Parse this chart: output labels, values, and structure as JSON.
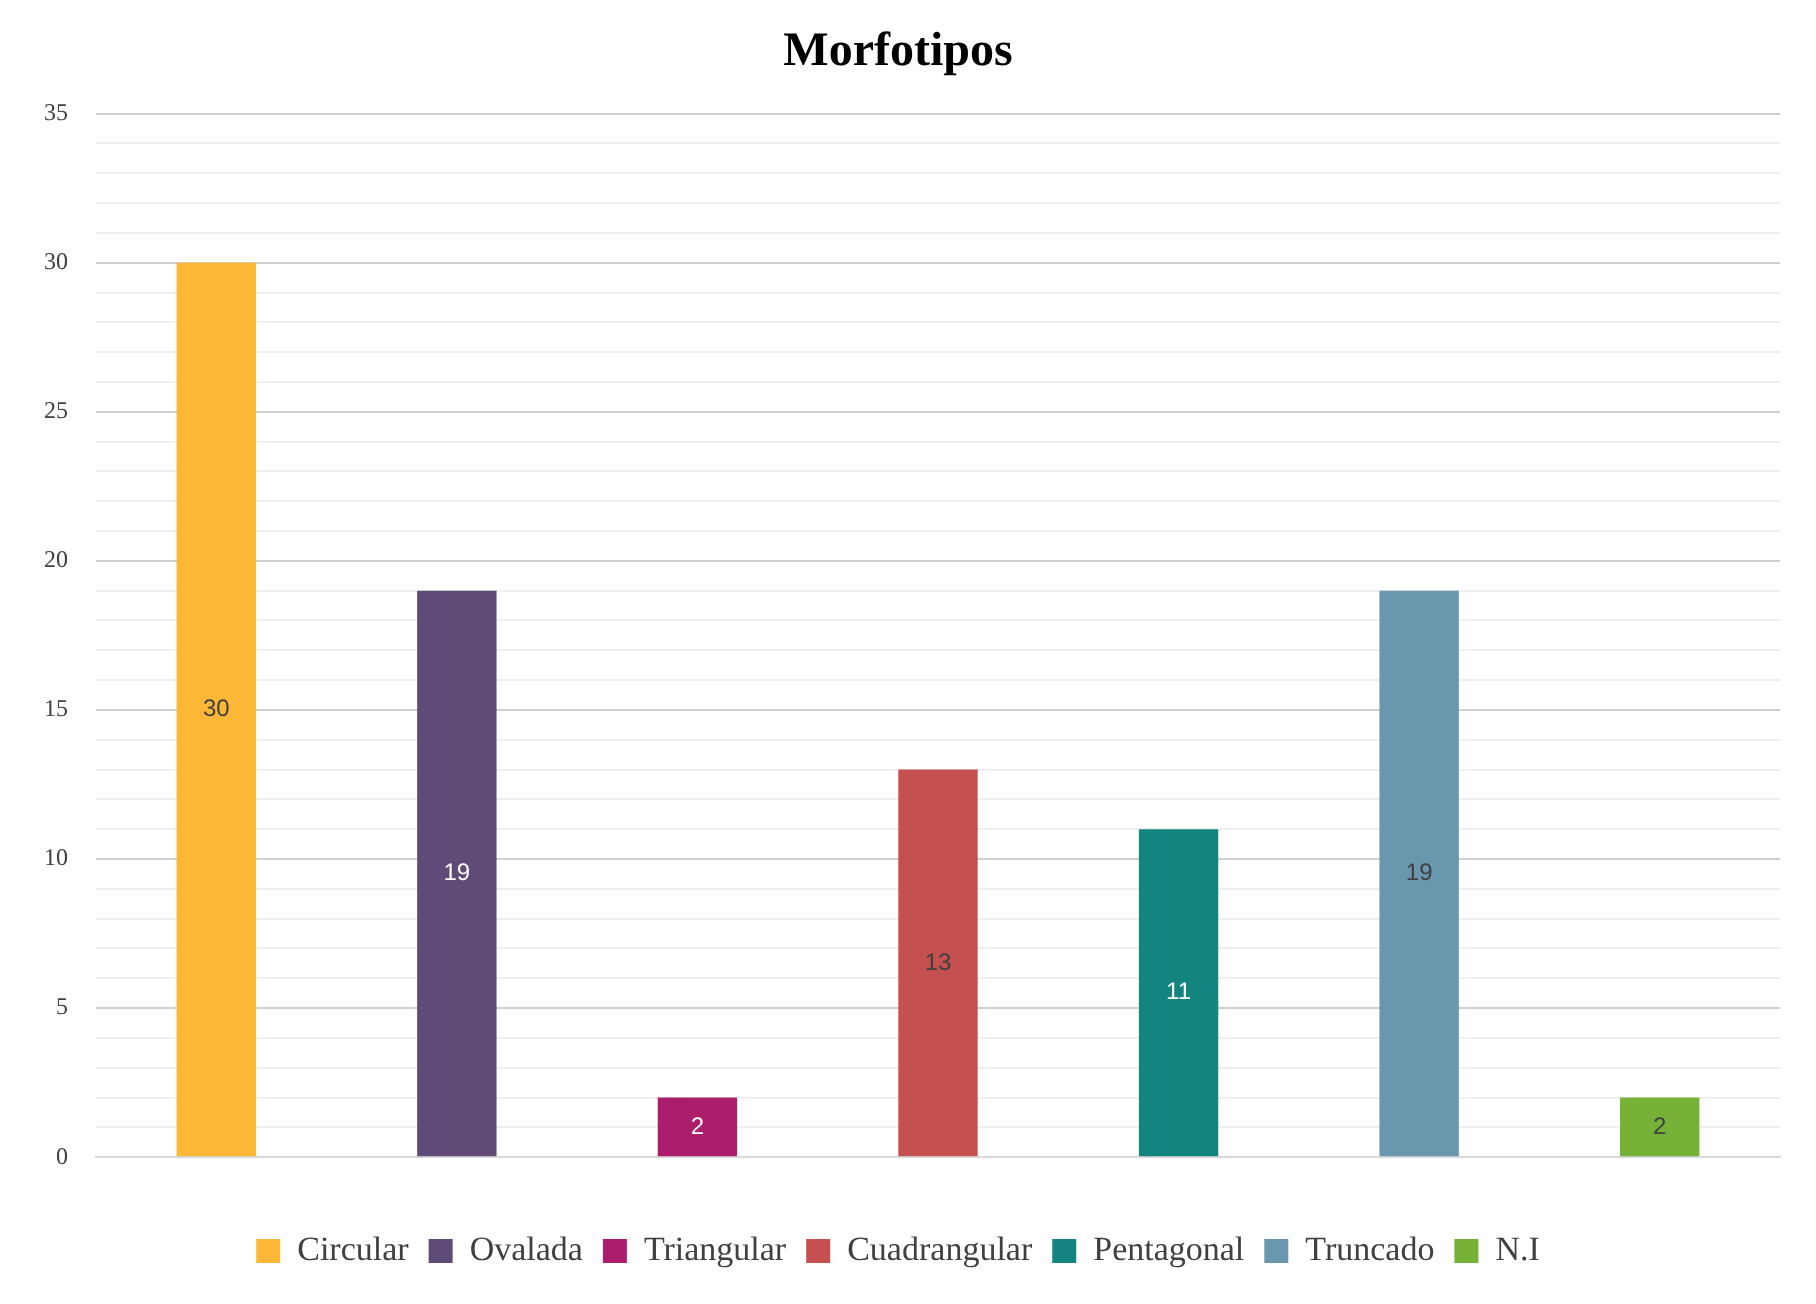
{
  "chart_data": {
    "type": "bar",
    "title": "Morfotipos",
    "categories": [
      null,
      null,
      null,
      null,
      null,
      null,
      null
    ],
    "series": [
      {
        "name": "Circular",
        "color": "#fbb735",
        "values": [
          30,
          null,
          null,
          null,
          null,
          null,
          null
        ]
      },
      {
        "name": "Ovalada",
        "color": "#5e4b78",
        "values": [
          null,
          19,
          null,
          null,
          null,
          null,
          null
        ]
      },
      {
        "name": "Triangular",
        "color": "#ac1d6c",
        "values": [
          null,
          null,
          2,
          null,
          null,
          null,
          null
        ]
      },
      {
        "name": "Cuadrangular",
        "color": "#c4504f",
        "values": [
          null,
          null,
          null,
          13,
          null,
          null,
          null
        ]
      },
      {
        "name": "Pentagonal",
        "color": "#14847f",
        "values": [
          null,
          null,
          null,
          null,
          11,
          null,
          null
        ]
      },
      {
        "name": "Truncado",
        "color": "#6897ae",
        "values": [
          null,
          null,
          null,
          null,
          null,
          19,
          null
        ]
      },
      {
        "name": "N.I",
        "color": "#76b138",
        "values": [
          null,
          null,
          null,
          null,
          null,
          null,
          2
        ]
      }
    ],
    "ylim": [
      0,
      35
    ],
    "yticks": [
      0,
      {
        "value": 1,
        "label": null
      },
      {
        "value": 2,
        "label": null
      },
      {
        "value": 3,
        "label": null
      },
      {
        "value": 4,
        "label": null
      },
      5,
      {
        "value": 6,
        "label": null
      },
      {
        "value": 7,
        "label": null
      },
      {
        "value": 8,
        "label": null
      },
      {
        "value": 9,
        "label": null
      },
      10,
      {
        "value": 11,
        "label": null
      },
      {
        "value": 12,
        "label": null
      },
      {
        "value": 13,
        "label": null
      },
      {
        "value": 14,
        "label": null
      },
      15,
      {
        "value": 16,
        "label": null
      },
      {
        "value": 17,
        "label": null
      },
      {
        "value": 18,
        "label": null
      },
      {
        "value": 19,
        "label": null
      },
      20,
      {
        "value": 21,
        "label": null
      },
      {
        "value": 22,
        "label": null
      },
      {
        "value": 23,
        "label": null
      },
      {
        "value": 24,
        "label": null
      },
      25,
      {
        "value": 26,
        "label": null
      },
      {
        "value": 27,
        "label": null
      },
      {
        "value": 28,
        "label": null
      },
      {
        "value": 29,
        "label": null
      },
      30,
      {
        "value": 31,
        "label": null
      },
      {
        "value": 32,
        "label": null
      },
      {
        "value": 33,
        "label": null
      },
      {
        "value": 34,
        "label": null
      },
      35
    ],
    "grid": "y",
    "legend": "bottom",
    "data_labels": true
  }
}
